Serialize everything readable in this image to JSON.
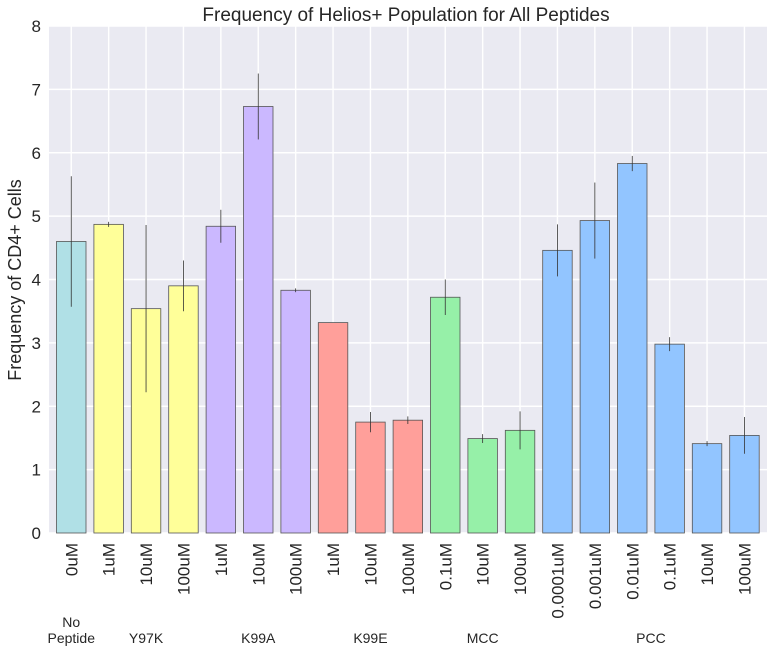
{
  "chart_data": {
    "type": "bar",
    "title": "Frequency of Helios+ Population for All Peptides",
    "xlabel": "",
    "ylabel": "Frequency of CD4+ Cells",
    "ylim": [
      0,
      8
    ],
    "yticks": [
      "0",
      "1",
      "2",
      "3",
      "4",
      "5",
      "6",
      "7",
      "8"
    ],
    "grid": true,
    "legend": "none",
    "background_color": "#EAEAF2",
    "grid_color": "#ffffff",
    "categories": [
      "0uM",
      "1uM",
      "10uM",
      "100uM",
      "1uM",
      "10uM",
      "100uM",
      "1uM",
      "10uM",
      "100uM",
      "0.1uM",
      "10uM",
      "100uM",
      "0.0001uM",
      "0.001uM",
      "0.01uM",
      "0.1uM",
      "10uM",
      "100uM"
    ],
    "values": [
      4.6,
      4.87,
      3.54,
      3.9,
      4.84,
      6.73,
      3.83,
      3.32,
      1.75,
      1.78,
      3.72,
      1.49,
      1.62,
      4.46,
      4.93,
      5.83,
      2.98,
      1.41,
      1.54
    ],
    "errors": [
      1.03,
      0.04,
      1.32,
      0.4,
      0.26,
      0.52,
      0.03,
      0.0,
      0.16,
      0.06,
      0.28,
      0.07,
      0.3,
      0.41,
      0.6,
      0.12,
      0.11,
      0.04,
      0.29
    ],
    "group_index": [
      0,
      1,
      1,
      1,
      2,
      2,
      2,
      3,
      3,
      3,
      4,
      4,
      4,
      5,
      5,
      5,
      5,
      5,
      5
    ],
    "groups": [
      {
        "label_lines": [
          "No",
          "Peptide"
        ],
        "color": "#B0E0E6"
      },
      {
        "label_lines": [
          "Y97K"
        ],
        "color": "#FFFF99"
      },
      {
        "label_lines": [
          "K99A"
        ],
        "color": "#CBB8FF"
      },
      {
        "label_lines": [
          "K99E"
        ],
        "color": "#FF9F9A"
      },
      {
        "label_lines": [
          "MCC"
        ],
        "color": "#96F0A8"
      },
      {
        "label_lines": [
          "PCC"
        ],
        "color": "#92C5FF"
      }
    ]
  }
}
